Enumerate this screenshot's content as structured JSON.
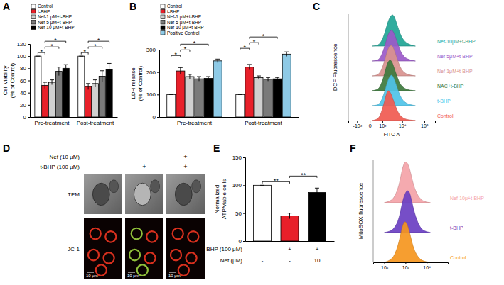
{
  "chart_data": [
    {
      "type": "bar",
      "title": "A",
      "ylabel": [
        "Cell viability",
        "(% of Control)"
      ],
      "categories": [
        "Pre-treatment",
        "Post-treatment"
      ],
      "series": [
        {
          "name": "Control",
          "color": "#ffffff",
          "values": [
            100,
            100
          ],
          "errors": [
            0,
            0
          ]
        },
        {
          "name": "t-BHP",
          "color": "#e8202a",
          "values": [
            52,
            50
          ],
          "errors": [
            5,
            5
          ]
        },
        {
          "name": "Nef-1 μM+t-BHP",
          "color": "#d0d0d0",
          "values": [
            57,
            55
          ],
          "errors": [
            4,
            6
          ]
        },
        {
          "name": "Nef-5 μM+t-BHP",
          "color": "#7a7a7a",
          "values": [
            75,
            67
          ],
          "errors": [
            7,
            9
          ]
        },
        {
          "name": "Nef-10 μM+t-BHP",
          "color": "#000000",
          "values": [
            80,
            78
          ],
          "errors": [
            6,
            10
          ]
        }
      ],
      "ylim": [
        0,
        120
      ],
      "yticks": [
        0,
        20,
        40,
        60,
        80,
        100,
        120
      ],
      "legend": "top-left",
      "significance": [
        {
          "category": 0,
          "from": 0,
          "to": 1,
          "label": "*"
        },
        {
          "category": 0,
          "from": 1,
          "to": 3,
          "label": "*"
        },
        {
          "category": 0,
          "from": 1,
          "to": 4,
          "label": "*"
        },
        {
          "category": 1,
          "from": 0,
          "to": 1,
          "label": "*"
        },
        {
          "category": 1,
          "from": 1,
          "to": 3,
          "label": "*"
        },
        {
          "category": 1,
          "from": 1,
          "to": 4,
          "label": "*"
        }
      ]
    },
    {
      "type": "bar",
      "title": "B",
      "ylabel": [
        "LDH release",
        "(% of Control)"
      ],
      "categories": [
        "Pre-treatment",
        "Post-treatment"
      ],
      "series": [
        {
          "name": "Control",
          "color": "#ffffff",
          "values": [
            100,
            100
          ],
          "errors": [
            0,
            0
          ]
        },
        {
          "name": "t-BHP",
          "color": "#e8202a",
          "values": [
            205,
            222
          ],
          "errors": [
            15,
            12
          ]
        },
        {
          "name": "Nef-1 μM+t-BHP",
          "color": "#d0d0d0",
          "values": [
            180,
            175
          ],
          "errors": [
            10,
            8
          ]
        },
        {
          "name": "Nef-5 μM+t-BHP",
          "color": "#7a7a7a",
          "values": [
            170,
            168
          ],
          "errors": [
            10,
            8
          ]
        },
        {
          "name": "Nef-10 μM+t-BHP",
          "color": "#000000",
          "values": [
            172,
            170
          ],
          "errors": [
            8,
            6
          ]
        },
        {
          "name": "Positive Control",
          "color": "#8ecae6",
          "values": [
            250,
            280
          ],
          "errors": [
            8,
            10
          ]
        }
      ],
      "ylim": [
        0,
        300
      ],
      "yticks": [
        0,
        100,
        200,
        300
      ],
      "legend": "top-left",
      "significance": [
        {
          "category": 0,
          "from": 0,
          "to": 1,
          "label": "*"
        },
        {
          "category": 0,
          "from": 1,
          "to": 2,
          "label": "*"
        },
        {
          "category": 0,
          "from": 1,
          "to": 4,
          "label": "*"
        },
        {
          "category": 1,
          "from": 0,
          "to": 1,
          "label": "*"
        },
        {
          "category": 1,
          "from": 1,
          "to": 2,
          "label": "*"
        },
        {
          "category": 1,
          "from": 1,
          "to": 4,
          "label": "*"
        }
      ]
    },
    {
      "type": "ridgeline",
      "title": "C",
      "ylabel": "DCF Fluorescence",
      "xlabel": "FITC-A",
      "log": "x",
      "tick_labels": "x",
      "x": [
        100,
        300,
        500,
        700,
        1000,
        1500,
        2000,
        3000,
        4000,
        6000,
        8000,
        12000,
        20000,
        40000
      ],
      "xlim": [
        -3000,
        300000
      ],
      "xticks": [
        {
          "value": -1000,
          "label": "-10³"
        },
        0,
        {
          "value": 1000,
          "label": "10³"
        },
        {
          "value": 10000,
          "label": "10⁴"
        },
        {
          "value": 100000,
          "label": "10⁵"
        }
      ],
      "ylim": [
        0,
        100
      ],
      "series": [
        {
          "name": "Control",
          "color": "#f05a50",
          "values": [
            0,
            2,
            6,
            14,
            35,
            70,
            100,
            85,
            60,
            30,
            15,
            6,
            2,
            0
          ]
        },
        {
          "name": "t-BHP",
          "color": "#4fc3e8",
          "values": [
            0,
            1,
            3,
            8,
            22,
            50,
            80,
            100,
            90,
            55,
            30,
            12,
            4,
            0
          ]
        },
        {
          "name": "NAC+t-BHP",
          "color": "#3d7a3d",
          "values": [
            0,
            2,
            5,
            12,
            30,
            62,
            92,
            100,
            75,
            42,
            20,
            8,
            2,
            0
          ]
        },
        {
          "name": "Nef-1μM+t-BHP",
          "color": "#d9928f",
          "values": [
            0,
            1,
            4,
            10,
            25,
            55,
            85,
            100,
            88,
            52,
            27,
            10,
            3,
            0
          ]
        },
        {
          "name": "Nef-5μM+t-BHP",
          "color": "#9b59c9",
          "values": [
            0,
            1,
            3,
            9,
            24,
            52,
            82,
            100,
            92,
            58,
            32,
            13,
            4,
            0
          ]
        },
        {
          "name": "Nef-10μM+t-BHP",
          "color": "#1fa595",
          "values": [
            0,
            1,
            3,
            8,
            20,
            46,
            76,
            98,
            100,
            65,
            38,
            16,
            5,
            0
          ]
        }
      ]
    },
    {
      "type": "bar",
      "title": "E",
      "ylabel": [
        "Normalized",
        "ATP/viable cells"
      ],
      "categories": [
        null,
        null,
        null
      ],
      "values": [
        100,
        45,
        87
      ],
      "errors": [
        0,
        5,
        8
      ],
      "colors": [
        "#ffffff",
        "#e8202a",
        "#000000"
      ],
      "ylim": [
        0,
        150
      ],
      "yticks": [
        0,
        50,
        100,
        150
      ],
      "conditions": [
        {
          "label": "t-BHP (100 μM)",
          "values": [
            "-",
            "+",
            "+"
          ]
        },
        {
          "label": "Nef (μM)",
          "values": [
            "-",
            "-",
            "10"
          ]
        }
      ],
      "significance": [
        {
          "from": 0,
          "to": 1,
          "label": "**"
        },
        {
          "from": 1,
          "to": 2,
          "label": "**"
        }
      ]
    },
    {
      "type": "ridgeline",
      "title": "F",
      "ylabel": "MitoSOX fluorescence",
      "log": "x",
      "tick_labels": "x",
      "x": [
        100,
        200,
        300,
        500,
        700,
        1000,
        1500,
        2000,
        3000,
        5000,
        8000,
        15000
      ],
      "xlim": [
        30,
        100000
      ],
      "xticks": [
        {
          "value": 100,
          "label": "10²"
        },
        {
          "value": 1000,
          "label": "10³"
        },
        {
          "value": 10000,
          "label": "10⁴"
        }
      ],
      "ylim": [
        0,
        100
      ],
      "series": [
        {
          "name": "Control",
          "color": "#f5961e",
          "values": [
            0,
            5,
            15,
            45,
            85,
            100,
            75,
            45,
            20,
            6,
            2,
            0
          ]
        },
        {
          "name": "t-BHP",
          "color": "#6a3fc2",
          "values": [
            0,
            3,
            10,
            30,
            70,
            95,
            100,
            70,
            35,
            10,
            3,
            0
          ]
        },
        {
          "name": "Nef-10μ+t-BHP",
          "color": "#f4a3a8",
          "values": [
            0,
            4,
            12,
            38,
            80,
            100,
            85,
            55,
            25,
            8,
            2,
            0
          ]
        }
      ]
    }
  ],
  "panel_d": {
    "title": "D",
    "rows": [
      {
        "label": "Nef (10 μM)",
        "values": [
          "-",
          "-",
          "+"
        ]
      },
      {
        "label": "t-BHP (100 μM)",
        "values": [
          "-",
          "+",
          "+"
        ]
      }
    ],
    "images": [
      {
        "label": "TEM"
      },
      {
        "label": "JC-1",
        "scale_bar": "10 μm"
      }
    ]
  }
}
